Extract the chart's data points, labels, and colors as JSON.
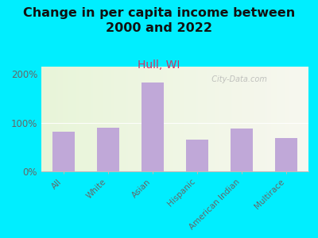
{
  "title": "Change in per capita income between\n2000 and 2022",
  "subtitle": "Hull, WI",
  "categories": [
    "All",
    "White",
    "Asian",
    "Hispanic",
    "American Indian",
    "Multirace"
  ],
  "values": [
    82,
    90,
    183,
    65,
    88,
    68
  ],
  "bar_color": "#c0a8d8",
  "background_outer": "#00eeff",
  "title_fontsize": 11.5,
  "subtitle_fontsize": 10,
  "subtitle_color": "#cc3366",
  "ylabel_ticks": [
    "0%",
    "100%",
    "200%"
  ],
  "ytick_vals": [
    0,
    100,
    200
  ],
  "ylim": [
    0,
    215
  ],
  "watermark": "  City-Data.com"
}
